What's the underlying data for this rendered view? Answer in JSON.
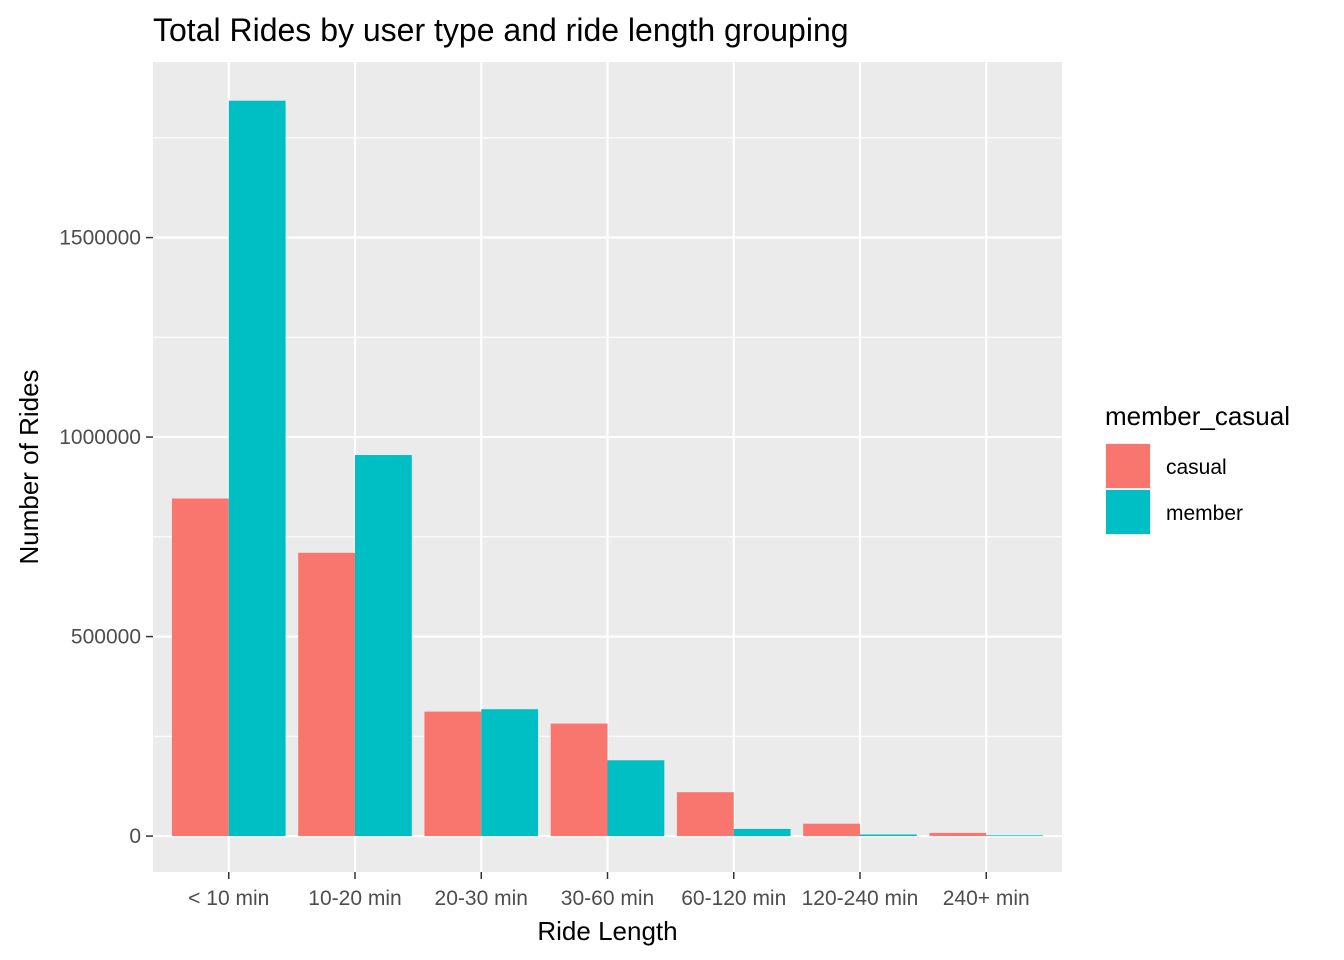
{
  "chart_data": {
    "type": "bar",
    "title": "Total Rides by user type and ride length grouping",
    "xlabel": "Ride Length",
    "ylabel": "Number of Rides",
    "categories": [
      "< 10 min",
      "10-20 min",
      "20-30 min",
      "30-60 min",
      "60-120 min",
      "120-240 min",
      "240+ min"
    ],
    "series": [
      {
        "name": "casual",
        "color": "#F8766D",
        "values": [
          846000,
          710000,
          312000,
          282000,
          110000,
          31000,
          8000
        ]
      },
      {
        "name": "member",
        "color": "#00BFC4",
        "values": [
          1843000,
          955000,
          318000,
          190000,
          18000,
          4000,
          2000
        ]
      }
    ],
    "ylim": [
      -90000,
      1940000
    ],
    "yticks": [
      0,
      500000,
      1000000,
      1500000
    ],
    "ytick_labels": [
      "0",
      "500000",
      "1000000",
      "1500000"
    ],
    "grid": true,
    "legend": {
      "title": "member_casual",
      "position": "right"
    },
    "panel_color": "#EBEBEB",
    "grid_color": "#FFFFFF"
  }
}
